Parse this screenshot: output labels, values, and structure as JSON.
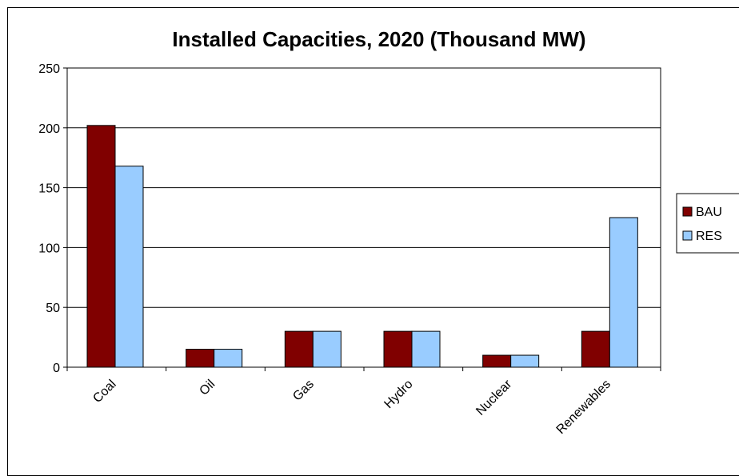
{
  "colors": {
    "BAU": "#800000",
    "RES": "#99ccff",
    "grid": "#000000",
    "axis": "#000000"
  },
  "chart_data": {
    "type": "bar",
    "title": "Installed Capacities, 2020 (Thousand MW)",
    "xlabel": "",
    "ylabel": "",
    "categories": [
      "Coal",
      "Oil",
      "Gas",
      "Hydro",
      "Nuclear",
      "Renewables"
    ],
    "series": [
      {
        "name": "BAU",
        "values": [
          202,
          15,
          30,
          30,
          10,
          30
        ]
      },
      {
        "name": "RES",
        "values": [
          168,
          15,
          30,
          30,
          10,
          125
        ]
      }
    ],
    "ylim": [
      0,
      250
    ],
    "yticks": [
      0,
      50,
      100,
      150,
      200,
      250
    ],
    "grid": true,
    "legend": "right"
  }
}
